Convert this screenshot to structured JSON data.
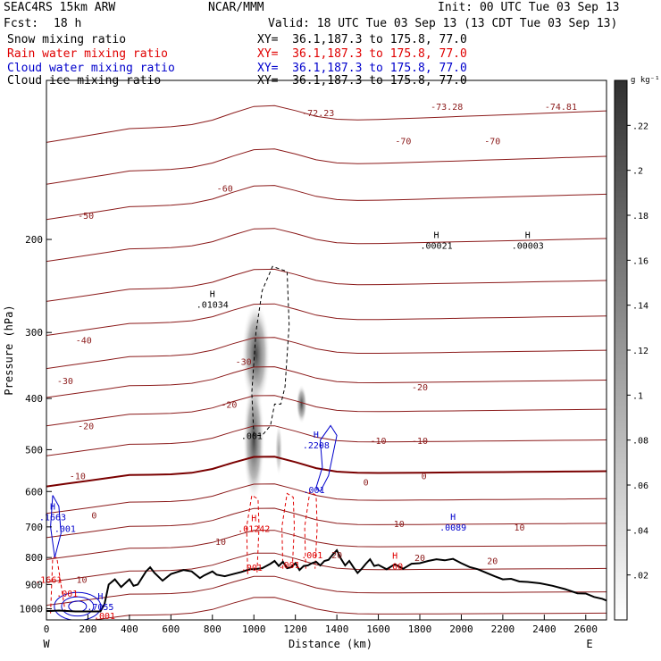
{
  "header": {
    "model": "SEAC4RS 15km ARW",
    "org": "NCAR/MMM",
    "init": "Init: 00 UTC Tue 03 Sep 13",
    "fcst_label": "Fcst:",
    "fcst_value": "18 h",
    "valid": "Valid: 18 UTC Tue 03 Sep 13 (13 CDT Tue 03 Sep 13)"
  },
  "fields": [
    {
      "label": "Snow mixing ratio",
      "xy": "XY=  36.1,187.3 to 175.8, 77.0",
      "color": "#000000"
    },
    {
      "label": "Rain water mixing ratio",
      "xy": "XY=  36.1,187.3 to 175.8, 77.0",
      "color": "#e00000"
    },
    {
      "label": "Cloud water mixing ratio",
      "xy": "XY=  36.1,187.3 to 175.8, 77.0",
      "color": "#0000cc"
    },
    {
      "label": "Cloud ice mixing ratio",
      "xy": "XY=  36.1,187.3 to 175.8, 77.0",
      "color": "#000000"
    }
  ],
  "chart_data": {
    "type": "contour cross-section",
    "xlabel": "Distance (km)",
    "ylabel": "Pressure (hPa)",
    "x_ticks": [
      "0",
      "200",
      "400",
      "600",
      "800",
      "1000",
      "1200",
      "1400",
      "1600",
      "1800",
      "2000",
      "2200",
      "2400",
      "2600"
    ],
    "y_ticks": [
      "200",
      "300",
      "400",
      "500",
      "600",
      "700",
      "800",
      "900",
      "1000"
    ],
    "xlim": [
      0,
      2700
    ],
    "ylim": [
      1050,
      100
    ],
    "y_scale": "log",
    "west_label": "W",
    "east_label": "E",
    "colorbar": {
      "units": "g kg⁻¹",
      "ticks": [
        ".02",
        ".04",
        ".06",
        ".08",
        ".1",
        ".12",
        ".14",
        ".16",
        ".18",
        ".2",
        ".22"
      ],
      "range": [
        0,
        0.24
      ]
    },
    "temperature_labels": [
      {
        "text": "-50",
        "x": 190,
        "p": 180
      },
      {
        "text": "-60",
        "x": 860,
        "p": 160
      },
      {
        "text": "-70",
        "x": 1720,
        "p": 130
      },
      {
        "text": "-70",
        "x": 2150,
        "p": 130
      },
      {
        "text": "-72.23",
        "x": 1310,
        "p": 115
      },
      {
        "text": "-73.28",
        "x": 1930,
        "p": 112
      },
      {
        "text": "-74.81",
        "x": 2480,
        "p": 112
      },
      {
        "text": "-40",
        "x": 180,
        "p": 310
      },
      {
        "text": "-30",
        "x": 90,
        "p": 370
      },
      {
        "text": "-30",
        "x": 950,
        "p": 340
      },
      {
        "text": "-20",
        "x": 190,
        "p": 450
      },
      {
        "text": "-20",
        "x": 880,
        "p": 410
      },
      {
        "text": "-20",
        "x": 1800,
        "p": 380
      },
      {
        "text": "-10",
        "x": 150,
        "p": 560
      },
      {
        "text": "-10",
        "x": 1600,
        "p": 480
      },
      {
        "text": "-10",
        "x": 1800,
        "p": 480
      },
      {
        "text": "0",
        "x": 230,
        "p": 665
      },
      {
        "text": "0",
        "x": 1540,
        "p": 575
      },
      {
        "text": "0",
        "x": 1820,
        "p": 560
      },
      {
        "text": "10",
        "x": 1700,
        "p": 690
      },
      {
        "text": "10",
        "x": 2280,
        "p": 700
      },
      {
        "text": "10",
        "x": 840,
        "p": 745
      },
      {
        "text": "10",
        "x": 170,
        "p": 880
      },
      {
        "text": "20",
        "x": 1400,
        "p": 790
      },
      {
        "text": "20",
        "x": 1800,
        "p": 800
      },
      {
        "text": "20",
        "x": 2150,
        "p": 810
      }
    ],
    "max_labels": [
      {
        "label": "H",
        "value": ".01034",
        "x": 800,
        "p": 265,
        "color": "#000000"
      },
      {
        "label": "H",
        "value": ".00021",
        "x": 1880,
        "p": 205,
        "color": "#000000"
      },
      {
        "label": "H",
        "value": ".00003",
        "x": 2320,
        "p": 205,
        "color": "#000000"
      },
      {
        "label": "H",
        "value": ".2208",
        "x": 1300,
        "p": 490,
        "color": "#0000cc"
      },
      {
        "label": "H",
        "value": ".1663",
        "x": 30,
        "p": 670,
        "color": "#0000cc"
      },
      {
        "label": "H",
        "value": ".0089",
        "x": 1960,
        "p": 700,
        "color": "#0000cc"
      },
      {
        "label": "H",
        "value": ".7055",
        "x": 260,
        "p": 990,
        "color": "#0000cc"
      },
      {
        "label": "H",
        "value": ".01242",
        "x": 1000,
        "p": 705,
        "color": "#e00000"
      },
      {
        "label": "H",
        "value": ".00",
        "x": 1680,
        "p": 830,
        "color": "#e00000"
      },
      {
        "label": "",
        "value": ".1661",
        "x": 10,
        "p": 880,
        "color": "#e00000"
      }
    ],
    "min_labels": [
      {
        "value": ".001",
        "x": 990,
        "p": 470,
        "color": "#000000"
      },
      {
        "value": ".001",
        "x": 1290,
        "p": 595,
        "color": "#0000cc"
      },
      {
        "value": ".001",
        "x": 90,
        "p": 705,
        "color": "#0000cc"
      },
      {
        "value": ".001",
        "x": 1280,
        "p": 790,
        "color": "#e00000"
      },
      {
        "value": ".001",
        "x": 990,
        "p": 835,
        "color": "#e00000"
      },
      {
        "value": ".001",
        "x": 1170,
        "p": 825,
        "color": "#e00000"
      },
      {
        "value": ".001",
        "x": 100,
        "p": 935,
        "color": "#e00000"
      },
      {
        "value": ".001",
        "x": 280,
        "p": 1030,
        "color": "#e00000"
      }
    ],
    "terrain": {
      "x": [
        0,
        20,
        60,
        100,
        140,
        220,
        260,
        280,
        300,
        330,
        360,
        400,
        420,
        440,
        480,
        500,
        520,
        560,
        600,
        660,
        700,
        740,
        760,
        800,
        820,
        860,
        900,
        940,
        980,
        1000,
        1040,
        1060,
        1080,
        1100,
        1120,
        1140,
        1160,
        1180,
        1200,
        1220,
        1240,
        1260,
        1280,
        1300,
        1320,
        1340,
        1360,
        1380,
        1400,
        1420,
        1440,
        1460,
        1480,
        1500,
        1520,
        1540,
        1560,
        1580,
        1600,
        1640,
        1680,
        1720,
        1760,
        1800,
        1840,
        1880,
        1920,
        1960,
        2000,
        2040,
        2080,
        2120,
        2160,
        2200,
        2240,
        2280,
        2320,
        2380,
        2440,
        2500,
        2560,
        2600,
        2640,
        2680,
        2700
      ],
      "p": [
        1010,
        1010,
        1008,
        1010,
        1012,
        1012,
        1012,
        980,
        900,
        880,
        910,
        880,
        905,
        900,
        850,
        835,
        855,
        885,
        860,
        845,
        850,
        875,
        865,
        850,
        862,
        868,
        860,
        852,
        842,
        842,
        838,
        830,
        822,
        812,
        830,
        815,
        838,
        835,
        820,
        845,
        830,
        828,
        820,
        815,
        828,
        812,
        808,
        790,
        775,
        805,
        828,
        812,
        835,
        856,
        840,
        822,
        806,
        830,
        826,
        842,
        824,
        840,
        822,
        820,
        812,
        806,
        810,
        805,
        820,
        834,
        842,
        855,
        868,
        880,
        878,
        888,
        890,
        895,
        905,
        918,
        935,
        936,
        950,
        958,
        965
      ]
    }
  }
}
